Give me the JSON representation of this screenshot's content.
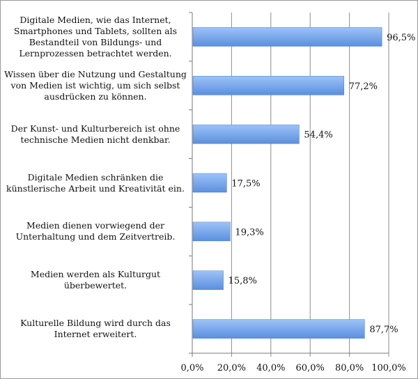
{
  "chart_data": {
    "type": "bar",
    "orientation": "horizontal",
    "categories": [
      "Digitale Medien, wie das Internet, Smartphones und Tablets, sollten als Bestandteil von Bildungs- und Lernprozessen betrachtet werden.",
      "Wissen über die Nutzung und Gestaltung von Medien ist wichtig, um sich selbst ausdrücken zu können.",
      "Der Kunst- und Kulturbereich ist ohne technische Medien nicht denkbar.",
      "Digitale Medien schränken die künstlerische Arbeit und Kreativität ein.",
      "Medien dienen vorwiegend der Unterhaltung und dem Zeitvertreib.",
      "Medien werden als Kulturgut überbewertet.",
      "Kulturelle Bildung wird durch das Internet erweitert."
    ],
    "values": [
      96.5,
      77.2,
      54.4,
      17.5,
      19.3,
      15.8,
      87.7
    ],
    "data_labels": [
      "96,5%",
      "77,2%",
      "54,4%",
      "17,5%",
      "19,3%",
      "15,8%",
      "87,7%"
    ],
    "xlim": [
      0,
      100
    ],
    "x_ticks": [
      "0,0%",
      "20,0%",
      "40,0%",
      "60,0%",
      "80,0%",
      "100,0%"
    ],
    "grid": "vertical",
    "bar_color": "#5b8fde",
    "bar_color_light": "#9dc3f7",
    "title": "",
    "xlabel": "",
    "ylabel": ""
  }
}
